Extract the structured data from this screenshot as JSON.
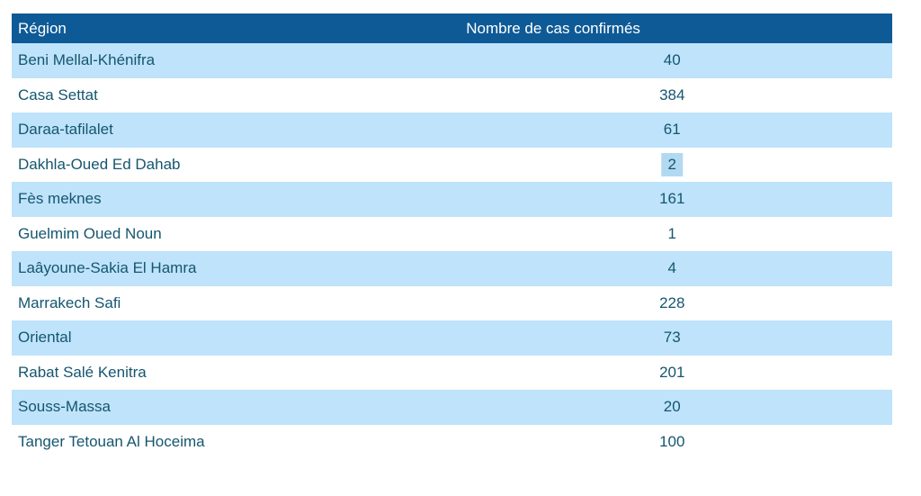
{
  "theme": {
    "header_bg": "#0e5a96",
    "header_text": "#ffffff",
    "row_alt_bg": "#bee3fb",
    "row_bg": "#ffffff",
    "cell_text": "#15566f",
    "selection_bg": "#b3d9f2"
  },
  "table": {
    "columns": [
      {
        "label": "Région"
      },
      {
        "label": "Nombre de cas confirmés"
      }
    ],
    "rows": [
      {
        "region": "Beni Mellal-Khénifra",
        "cases": "40",
        "selected": false
      },
      {
        "region": "Casa Settat",
        "cases": "384",
        "selected": false
      },
      {
        "region": "Daraa-tafilalet",
        "cases": "61",
        "selected": false
      },
      {
        "region": "Dakhla-Oued Ed Dahab",
        "cases": "2",
        "selected": true
      },
      {
        "region": "Fès meknes",
        "cases": "161",
        "selected": false
      },
      {
        "region": "Guelmim Oued Noun",
        "cases": "1",
        "selected": false
      },
      {
        "region": "Laâyoune-Sakia El Hamra",
        "cases": "4",
        "selected": false
      },
      {
        "region": "Marrakech Safi",
        "cases": "228",
        "selected": false
      },
      {
        "region": "Oriental",
        "cases": "73",
        "selected": false
      },
      {
        "region": "Rabat Salé Kenitra",
        "cases": "201",
        "selected": false
      },
      {
        "region": "Souss-Massa",
        "cases": "20",
        "selected": false
      },
      {
        "region": "Tanger Tetouan Al Hoceima",
        "cases": "100",
        "selected": false
      }
    ]
  },
  "chart_data": {
    "type": "table",
    "title": "",
    "columns": [
      "Région",
      "Nombre de cas confirmés"
    ],
    "categories": [
      "Beni Mellal-Khénifra",
      "Casa Settat",
      "Daraa-tafilalet",
      "Dakhla-Oued Ed Dahab",
      "Fès meknes",
      "Guelmim Oued Noun",
      "Laâyoune-Sakia El Hamra",
      "Marrakech Safi",
      "Oriental",
      "Rabat Salé Kenitra",
      "Souss-Massa",
      "Tanger Tetouan Al Hoceima"
    ],
    "values": [
      40,
      384,
      61,
      2,
      161,
      1,
      4,
      228,
      73,
      201,
      20,
      100
    ]
  }
}
